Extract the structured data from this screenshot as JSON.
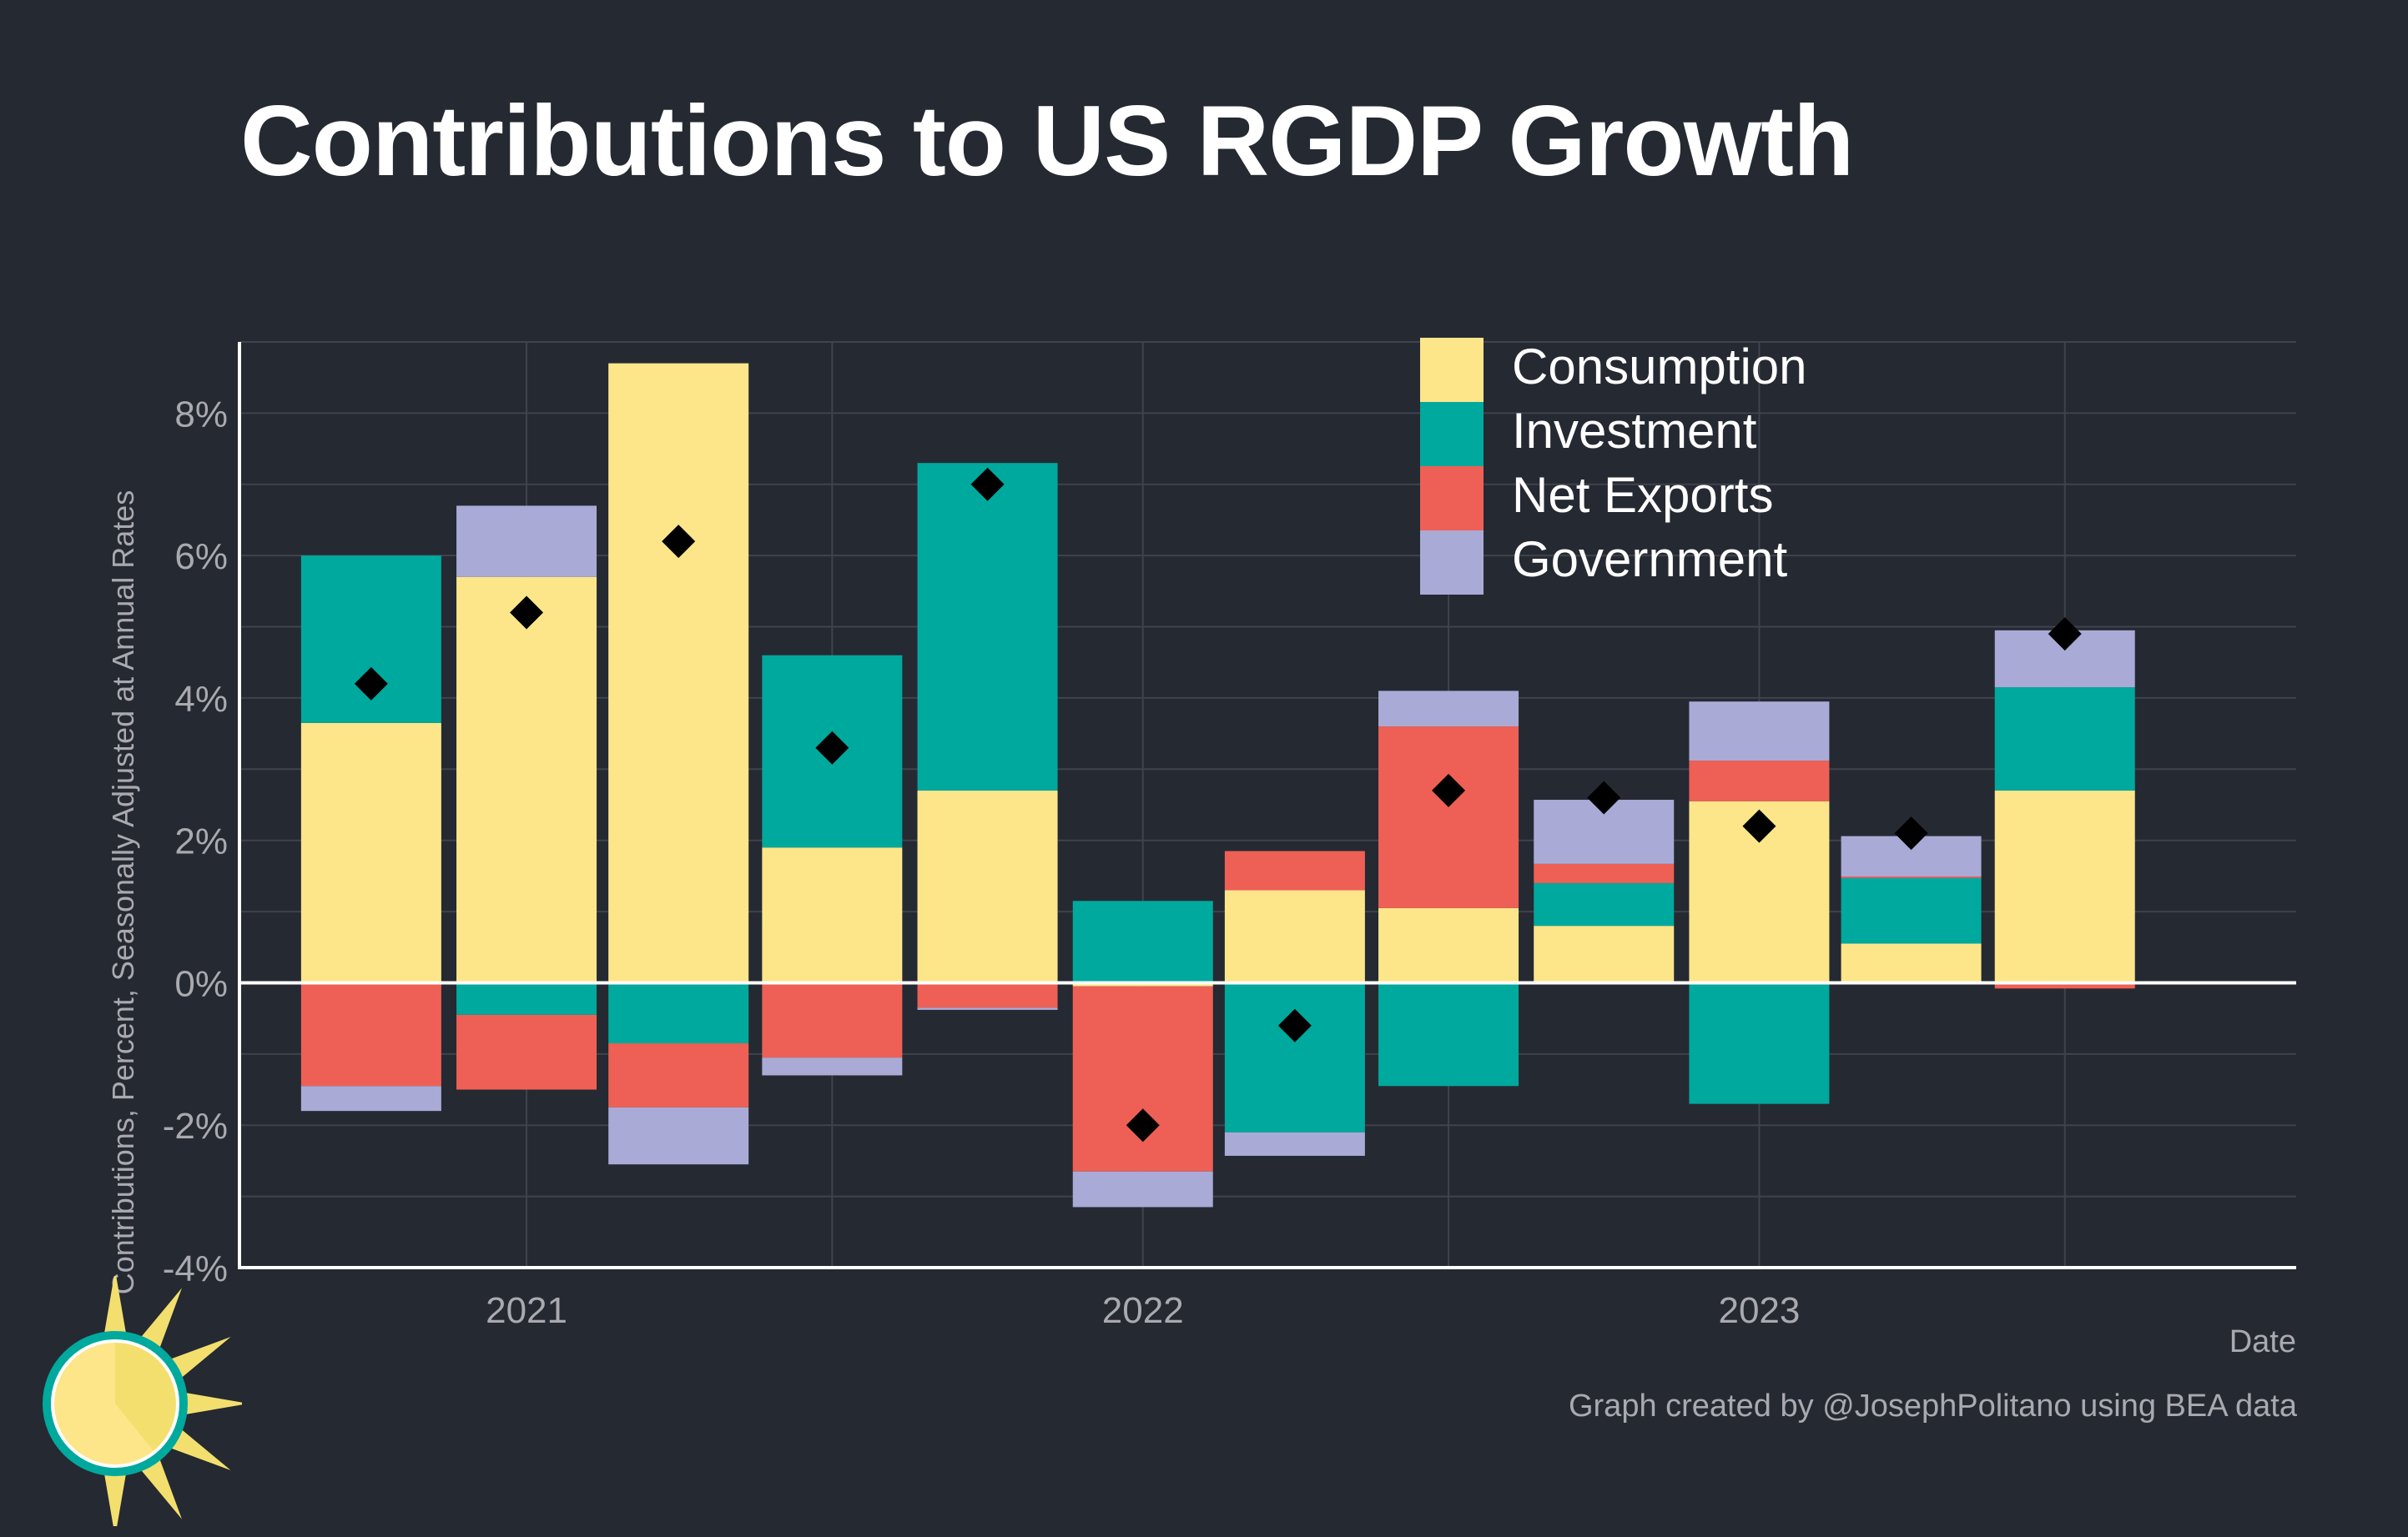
{
  "title": "Contributions to US RGDP Growth",
  "credit": "Graph created by @JosephPolitano using BEA data",
  "colors": {
    "background": "#252932",
    "grid": "#3e434d",
    "axis": "#ffffff",
    "tick_text": "#a9aab0",
    "consumption": "#fde68a",
    "investment": "#00a99d",
    "net_exports": "#ee6055",
    "government": "#aaaad6",
    "marker": "#000000"
  },
  "chart_data": {
    "type": "bar",
    "stacked": true,
    "xlabel": "Date",
    "ylabel": "Contributions, Percent, Seasonally Adjusted at Annual Rates",
    "ylim": [
      -4,
      9
    ],
    "yticks": [
      -4,
      -2,
      0,
      2,
      4,
      6,
      8
    ],
    "ytick_labels": [
      "-4%",
      "-2%",
      "0%",
      "2%",
      "4%",
      "6%",
      "8%"
    ],
    "xlim": [
      "2020-07-15",
      "2023-11-15"
    ],
    "xticks": [
      "2021-01-01",
      "2022-01-01",
      "2023-01-01"
    ],
    "xtick_labels": [
      "2021",
      "2022",
      "2023"
    ],
    "grid": true,
    "legend_position": "top-center",
    "categories": [
      "2020-10-01",
      "2021-01-01",
      "2021-04-01",
      "2021-07-01",
      "2021-10-01",
      "2022-01-01",
      "2022-04-01",
      "2022-07-01",
      "2022-10-01",
      "2023-01-01",
      "2023-04-01",
      "2023-07-01"
    ],
    "series": [
      {
        "name": "Consumption",
        "color_key": "consumption",
        "values": [
          3.65,
          5.7,
          8.7,
          1.9,
          2.7,
          -0.05,
          1.3,
          1.05,
          0.8,
          2.55,
          0.55,
          2.7
        ]
      },
      {
        "name": "Investment",
        "color_key": "investment",
        "values": [
          2.35,
          -0.45,
          -0.85,
          2.7,
          4.6,
          1.15,
          -2.1,
          -1.45,
          0.6,
          -1.7,
          0.92,
          1.45
        ]
      },
      {
        "name": "Net Exports",
        "color_key": "net_exports",
        "values": [
          -1.45,
          -1.05,
          -0.9,
          -1.05,
          -0.35,
          -2.6,
          0.55,
          2.55,
          0.27,
          0.57,
          0.02,
          -0.08
        ]
      },
      {
        "name": "Government",
        "color_key": "government",
        "values": [
          -0.35,
          1.0,
          -0.8,
          -0.25,
          -0.03,
          -0.5,
          -0.33,
          0.5,
          0.9,
          0.83,
          0.57,
          0.8
        ]
      }
    ],
    "total": [
      4.2,
      5.2,
      6.2,
      3.3,
      7.0,
      -2.0,
      -0.6,
      2.7,
      2.6,
      2.2,
      2.1,
      4.9
    ]
  }
}
